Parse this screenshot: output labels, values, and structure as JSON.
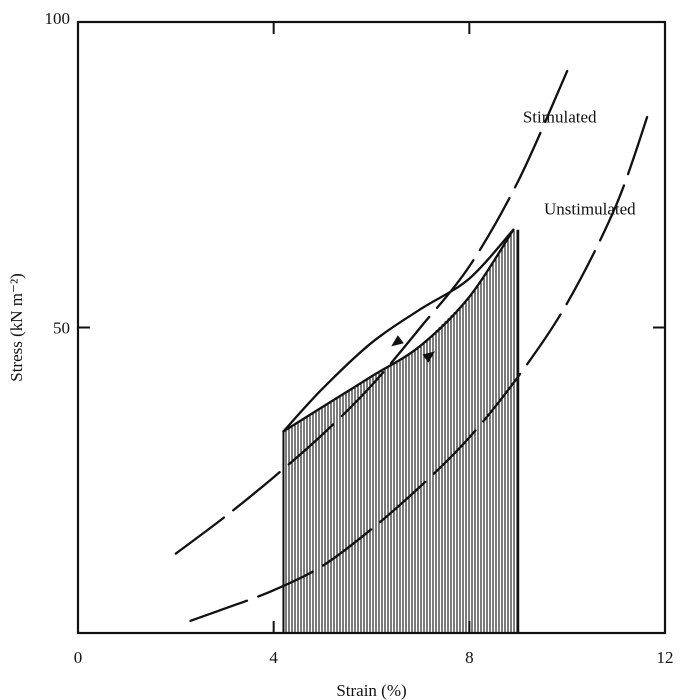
{
  "chart_data": {
    "type": "line",
    "title": "",
    "xlabel": "Strain (%)",
    "ylabel": "Stress (kN m⁻²)",
    "xlim": [
      0,
      12
    ],
    "ylim": [
      0,
      100
    ],
    "xticks": [
      0,
      4,
      8,
      12
    ],
    "yticks": [
      50,
      100
    ],
    "x_tick_labels": [
      "0",
      "4",
      "8",
      "12"
    ],
    "y_tick_labels": [
      "50",
      "100"
    ],
    "grid": false,
    "annotations": [
      {
        "text": "Stimulated",
        "x": 10.6,
        "y": 84.5
      },
      {
        "text": "Unstimulated",
        "x": 11.4,
        "y": 69.5
      }
    ],
    "series": [
      {
        "name": "Stimulated",
        "style": "dashed",
        "x": [
          2.0,
          3.0,
          4.0,
          5.0,
          6.0,
          7.0,
          8.0,
          9.0,
          10.0
        ],
        "y": [
          13.0,
          19.0,
          25.5,
          32.5,
          40.5,
          50.0,
          60.0,
          74.0,
          92.0
        ]
      },
      {
        "name": "Unstimulated",
        "style": "dashed",
        "x": [
          2.3,
          3.0,
          4.0,
          5.0,
          6.0,
          7.0,
          8.0,
          9.0,
          10.0,
          11.0,
          11.7
        ],
        "y": [
          2.0,
          4.0,
          7.0,
          11.0,
          17.0,
          24.0,
          32.0,
          42.0,
          54.0,
          70.0,
          86.0
        ]
      },
      {
        "name": "",
        "style": "solid",
        "x": [
          4.2,
          5.0,
          6.0,
          7.0,
          8.0,
          8.9
        ],
        "y": [
          33.0,
          37.0,
          42.0,
          47.0,
          55.0,
          66.0
        ]
      },
      {
        "name": "",
        "style": "solid",
        "x": [
          8.9,
          8.0,
          7.0,
          6.0,
          5.0,
          4.2
        ],
        "y": [
          66.0,
          58.0,
          53.0,
          47.5,
          40.0,
          33.0
        ]
      }
    ],
    "shaded_region": {
      "x_start": 4.2,
      "x_end": 9.0
    },
    "arrows": [
      {
        "x": 6.5,
        "y": 47.5,
        "direction": "down-left"
      },
      {
        "x": 7.2,
        "y": 45.5,
        "direction": "up-right"
      }
    ]
  },
  "colors": {
    "ink": "#111111",
    "background": "#ffffff"
  }
}
